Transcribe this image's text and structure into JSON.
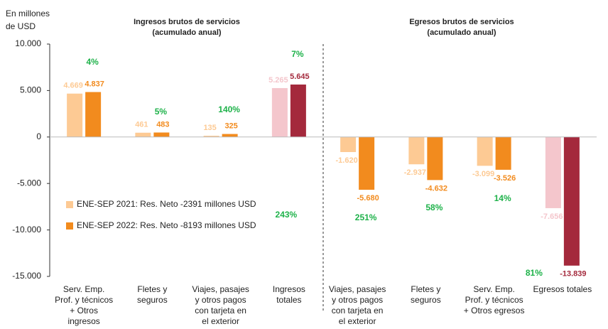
{
  "chart_data": {
    "type": "bar",
    "y_axis_label": "En millones\nde USD",
    "group_titles": [
      "Ingresos brutos de servicios\n(acumulado anual)",
      "Egresos brutos de servicios\n(acumulado anual)"
    ],
    "categories": [
      "Serv. Emp.\nProf. y técnicos\n+ Otros\ningresos",
      "Fletes y\nseguros",
      "Viajes, pasajes\ny otros pagos\ncon tarjeta en\nel exterior",
      "Ingresos\ntotales",
      "Viajes, pasajes\ny otros pagos\ncon tarjeta en\nel exterior",
      "Fletes y\nseguros",
      "Serv. Emp.\nProf. y técnicos\n+ Otros egresos",
      "Egresos totales"
    ],
    "series": [
      {
        "name": "ENE-SEP 2021: Res. Neto -2391 millones USD",
        "color": "#fdca94",
        "bar_colors": [
          "#fdca94",
          "#fdca94",
          "#fdca94",
          "#f4c6cc",
          "#fdca94",
          "#fdca94",
          "#fdca94",
          "#f4c6cc"
        ],
        "values": [
          4669,
          461,
          135,
          5265,
          -1620,
          -2937,
          -3099,
          -7656
        ],
        "value_labels": [
          "4.669",
          "461",
          "135",
          "5.265",
          "-1.620",
          "-2.937",
          "-3.099",
          "-7.656"
        ]
      },
      {
        "name": "ENE-SEP 2022: Res. Neto -8193 millones USD",
        "color": "#f28b1e",
        "bar_colors": [
          "#f28b1e",
          "#f28b1e",
          "#f28b1e",
          "#a4293c",
          "#f28b1e",
          "#f28b1e",
          "#f28b1e",
          "#a4293c"
        ],
        "values": [
          4837,
          483,
          325,
          5645,
          -5680,
          -4632,
          -3526,
          -13839
        ],
        "value_labels": [
          "4.837",
          "483",
          "325",
          "5.645",
          "-5.680",
          "-4.632",
          "-3.526",
          "-13.839"
        ]
      }
    ],
    "growth_labels": [
      "4%",
      "5%",
      "140%",
      "7%",
      "251%",
      "58%",
      "14%",
      "81%"
    ],
    "net_growth_label": "243%",
    "ylim": [
      -15000,
      10000
    ],
    "yticks": [
      {
        "value": 10000,
        "label": "10.000"
      },
      {
        "value": 5000,
        "label": "5.000"
      },
      0,
      {
        "value": -5000,
        "label": "-5.000"
      },
      {
        "value": -10000,
        "label": "-10.000"
      },
      {
        "value": -15000,
        "label": "-15.000"
      }
    ]
  }
}
